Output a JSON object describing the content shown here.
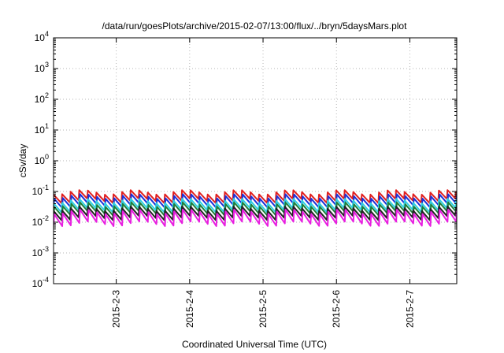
{
  "chart_data": {
    "type": "line",
    "title": "/data/run/goesPlots/archive/2015-02-07/13:00/flux/../bryn/5daysMars.plot",
    "xlabel": "Coordinated Universal Time (UTC)",
    "ylabel": "cSv/day",
    "y_scale": "log",
    "ylim": [
      0.0001,
      10000
    ],
    "y_ticks": [
      {
        "base": "10",
        "exp": "-4"
      },
      {
        "base": "10",
        "exp": "-3"
      },
      {
        "base": "10",
        "exp": "-2"
      },
      {
        "base": "10",
        "exp": "-1"
      },
      {
        "base": "10",
        "exp": "0"
      },
      {
        "base": "10",
        "exp": "1"
      },
      {
        "base": "10",
        "exp": "2"
      },
      {
        "base": "10",
        "exp": "3"
      },
      {
        "base": "10",
        "exp": "4"
      }
    ],
    "xlim": [
      "2015-02-02T03:30",
      "2015-02-07T15:20"
    ],
    "x_ticks": [
      {
        "label": "2015-2-3",
        "date": "2015-02-03T00:00"
      },
      {
        "label": "2015-2-4",
        "date": "2015-02-04T00:00"
      },
      {
        "label": "2015-2-5",
        "date": "2015-02-05T00:00"
      },
      {
        "label": "2015-2-6",
        "date": "2015-02-06T00:00"
      },
      {
        "label": "2015-2-7",
        "date": "2015-02-07T00:00"
      }
    ],
    "grid": true,
    "period_hours": 2.8,
    "series": [
      {
        "color": "#e01f1f",
        "peak": 0.095,
        "trough": 0.05
      },
      {
        "color": "#1c2fd6",
        "peak": 0.07,
        "trough": 0.035
      },
      {
        "color": "#2fd0e0",
        "peak": 0.05,
        "trough": 0.025
      },
      {
        "color": "#1d7f3a",
        "peak": 0.038,
        "trough": 0.019
      },
      {
        "color": "#222222",
        "peak": 0.028,
        "trough": 0.014
      },
      {
        "color": "#e81ee0",
        "peak": 0.022,
        "trough": 0.009
      }
    ]
  }
}
